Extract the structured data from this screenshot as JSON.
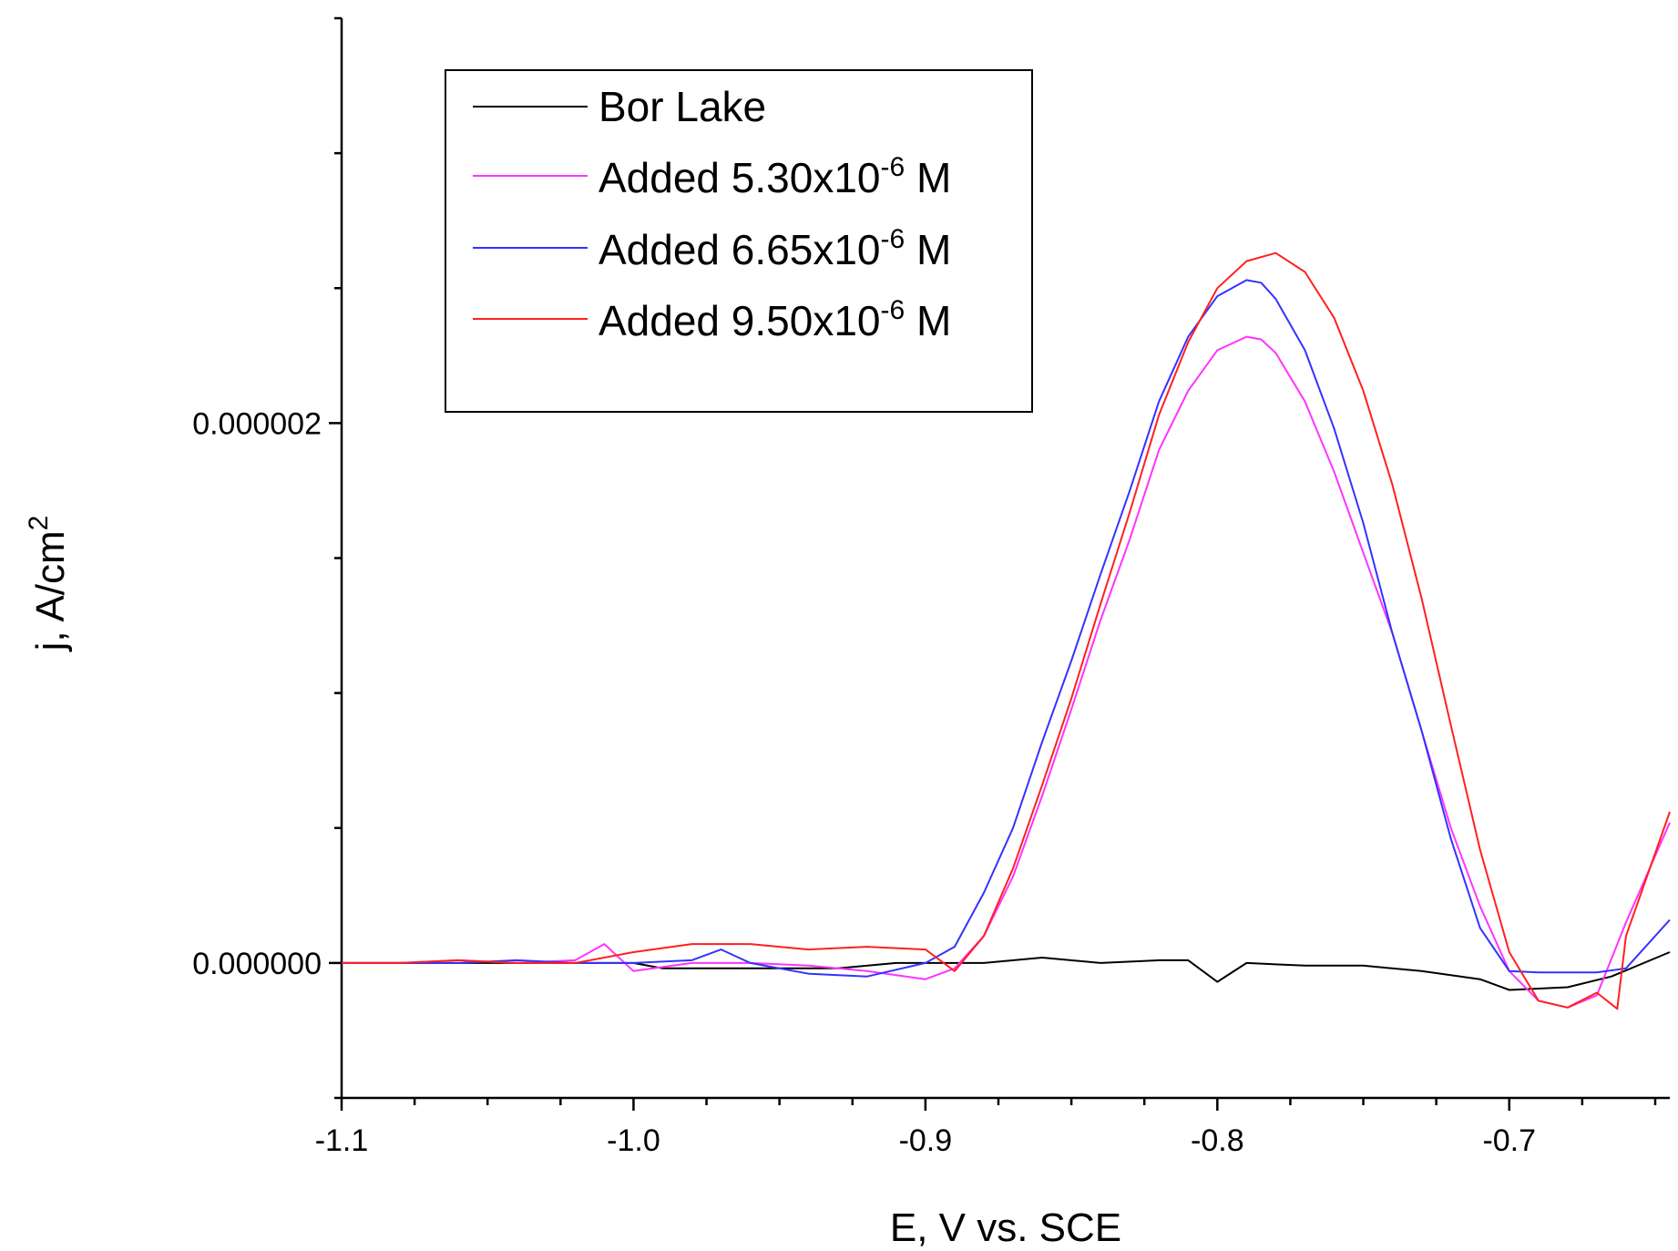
{
  "chart_data": {
    "type": "line",
    "title": "",
    "xlabel": "E, V vs. SCE",
    "ylabel": "j, A/cm",
    "ylabel_sup": "2",
    "xlim": [
      -1.1,
      -0.645
    ],
    "ylim": [
      -5e-07,
      3.5e-06
    ],
    "x_ticks": [
      -1.1,
      -1.0,
      -0.9,
      -0.8,
      -0.7
    ],
    "x_tick_labels": [
      "-1.1",
      "-1.0",
      "-0.9",
      "-0.8",
      "-0.7"
    ],
    "y_ticks": [
      0,
      2e-06
    ],
    "y_tick_labels": [
      "0.000000",
      "0.000002"
    ],
    "legend_position": "top-left",
    "series": [
      {
        "name": "Bor Lake",
        "legend_label": "Bor Lake",
        "color": "#000000",
        "points": [
          [
            -1.1,
            0.0
          ],
          [
            -1.08,
            0.0
          ],
          [
            -1.06,
            0.0
          ],
          [
            -1.04,
            0.0
          ],
          [
            -1.02,
            0.0
          ],
          [
            -1.0,
            0.0
          ],
          [
            -0.99,
            -2e-08
          ],
          [
            -0.97,
            -2e-08
          ],
          [
            -0.95,
            -2e-08
          ],
          [
            -0.93,
            -2e-08
          ],
          [
            -0.91,
            0.0
          ],
          [
            -0.88,
            0.0
          ],
          [
            -0.86,
            2e-08
          ],
          [
            -0.84,
            0.0
          ],
          [
            -0.82,
            1e-08
          ],
          [
            -0.81,
            1e-08
          ],
          [
            -0.8,
            -7e-08
          ],
          [
            -0.79,
            0.0
          ],
          [
            -0.77,
            -1e-08
          ],
          [
            -0.75,
            -1e-08
          ],
          [
            -0.73,
            -3e-08
          ],
          [
            -0.71,
            -6e-08
          ],
          [
            -0.7,
            -1e-07
          ],
          [
            -0.68,
            -9e-08
          ],
          [
            -0.665,
            -5e-08
          ],
          [
            -0.645,
            4e-08
          ]
        ]
      },
      {
        "name": "Added 5.30x10-6 M",
        "legend_prefix": "Added 5.30x10",
        "legend_sup": "-6",
        "legend_suffix": " M",
        "color": "#ff33ff",
        "points": [
          [
            -1.1,
            0.0
          ],
          [
            -1.08,
            0.0
          ],
          [
            -1.06,
            1e-08
          ],
          [
            -1.04,
            0.0
          ],
          [
            -1.02,
            1e-08
          ],
          [
            -1.01,
            7e-08
          ],
          [
            -1.0,
            -3e-08
          ],
          [
            -0.98,
            0.0
          ],
          [
            -0.96,
            0.0
          ],
          [
            -0.94,
            -1e-08
          ],
          [
            -0.92,
            -3e-08
          ],
          [
            -0.9,
            -6e-08
          ],
          [
            -0.89,
            -2e-08
          ],
          [
            -0.88,
            1e-07
          ],
          [
            -0.87,
            3.2e-07
          ],
          [
            -0.86,
            6.2e-07
          ],
          [
            -0.85,
            9.4e-07
          ],
          [
            -0.84,
            1.27e-06
          ],
          [
            -0.83,
            1.57e-06
          ],
          [
            -0.82,
            1.9e-06
          ],
          [
            -0.81,
            2.12e-06
          ],
          [
            -0.8,
            2.27e-06
          ],
          [
            -0.79,
            2.32e-06
          ],
          [
            -0.785,
            2.31e-06
          ],
          [
            -0.78,
            2.26e-06
          ],
          [
            -0.77,
            2.08e-06
          ],
          [
            -0.76,
            1.82e-06
          ],
          [
            -0.75,
            1.52e-06
          ],
          [
            -0.74,
            1.22e-06
          ],
          [
            -0.73,
            8.6e-07
          ],
          [
            -0.72,
            5e-07
          ],
          [
            -0.71,
            2.1e-07
          ],
          [
            -0.7,
            -3e-08
          ],
          [
            -0.69,
            -1.4e-07
          ],
          [
            -0.68,
            -1.65e-07
          ],
          [
            -0.67,
            -1.2e-07
          ],
          [
            -0.66,
            1.5e-07
          ],
          [
            -0.645,
            5.2e-07
          ]
        ]
      },
      {
        "name": "Added 6.65x10-6 M",
        "legend_prefix": "Added 6.65x10",
        "legend_sup": "-6",
        "legend_suffix": " M",
        "color": "#3333ff",
        "points": [
          [
            -1.1,
            0.0
          ],
          [
            -1.08,
            0.0
          ],
          [
            -1.06,
            0.0
          ],
          [
            -1.04,
            1e-08
          ],
          [
            -1.02,
            0.0
          ],
          [
            -1.0,
            0.0
          ],
          [
            -0.98,
            1e-08
          ],
          [
            -0.97,
            5e-08
          ],
          [
            -0.96,
            0.0
          ],
          [
            -0.94,
            -4e-08
          ],
          [
            -0.92,
            -5e-08
          ],
          [
            -0.9,
            0.0
          ],
          [
            -0.89,
            6e-08
          ],
          [
            -0.88,
            2.6e-07
          ],
          [
            -0.87,
            5e-07
          ],
          [
            -0.86,
            8.2e-07
          ],
          [
            -0.85,
            1.12e-06
          ],
          [
            -0.84,
            1.44e-06
          ],
          [
            -0.83,
            1.75e-06
          ],
          [
            -0.82,
            2.08e-06
          ],
          [
            -0.81,
            2.32e-06
          ],
          [
            -0.8,
            2.47e-06
          ],
          [
            -0.79,
            2.53e-06
          ],
          [
            -0.785,
            2.52e-06
          ],
          [
            -0.78,
            2.46e-06
          ],
          [
            -0.77,
            2.27e-06
          ],
          [
            -0.76,
            1.98e-06
          ],
          [
            -0.75,
            1.63e-06
          ],
          [
            -0.74,
            1.22e-06
          ],
          [
            -0.73,
            8.6e-07
          ],
          [
            -0.72,
            4.6e-07
          ],
          [
            -0.71,
            1.3e-07
          ],
          [
            -0.7,
            -3e-08
          ],
          [
            -0.69,
            -3.5e-08
          ],
          [
            -0.68,
            -3.5e-08
          ],
          [
            -0.67,
            -3.5e-08
          ],
          [
            -0.66,
            -2e-08
          ],
          [
            -0.645,
            1.6e-07
          ]
        ]
      },
      {
        "name": "Added 9.50x10-6 M",
        "legend_prefix": "Added 9.50x10",
        "legend_sup": "-6",
        "legend_suffix": " M",
        "color": "#ff2020",
        "points": [
          [
            -1.1,
            0.0
          ],
          [
            -1.08,
            0.0
          ],
          [
            -1.06,
            1e-08
          ],
          [
            -1.04,
            0.0
          ],
          [
            -1.02,
            0.0
          ],
          [
            -1.0,
            4e-08
          ],
          [
            -0.98,
            7e-08
          ],
          [
            -0.96,
            7e-08
          ],
          [
            -0.94,
            5e-08
          ],
          [
            -0.92,
            6e-08
          ],
          [
            -0.9,
            5e-08
          ],
          [
            -0.89,
            -3e-08
          ],
          [
            -0.88,
            1e-07
          ],
          [
            -0.87,
            3.5e-07
          ],
          [
            -0.86,
            6.6e-07
          ],
          [
            -0.85,
            9.8e-07
          ],
          [
            -0.84,
            1.33e-06
          ],
          [
            -0.83,
            1.67e-06
          ],
          [
            -0.82,
            2.03e-06
          ],
          [
            -0.81,
            2.3e-06
          ],
          [
            -0.8,
            2.5e-06
          ],
          [
            -0.79,
            2.6e-06
          ],
          [
            -0.78,
            2.63e-06
          ],
          [
            -0.77,
            2.56e-06
          ],
          [
            -0.76,
            2.39e-06
          ],
          [
            -0.75,
            2.12e-06
          ],
          [
            -0.74,
            1.77e-06
          ],
          [
            -0.73,
            1.35e-06
          ],
          [
            -0.72,
            8.8e-07
          ],
          [
            -0.71,
            4.2e-07
          ],
          [
            -0.7,
            4e-08
          ],
          [
            -0.69,
            -1.4e-07
          ],
          [
            -0.68,
            -1.65e-07
          ],
          [
            -0.67,
            -1.1e-07
          ],
          [
            -0.663,
            -1.7e-07
          ],
          [
            -0.66,
            1e-07
          ],
          [
            -0.645,
            5.6e-07
          ]
        ]
      }
    ]
  }
}
